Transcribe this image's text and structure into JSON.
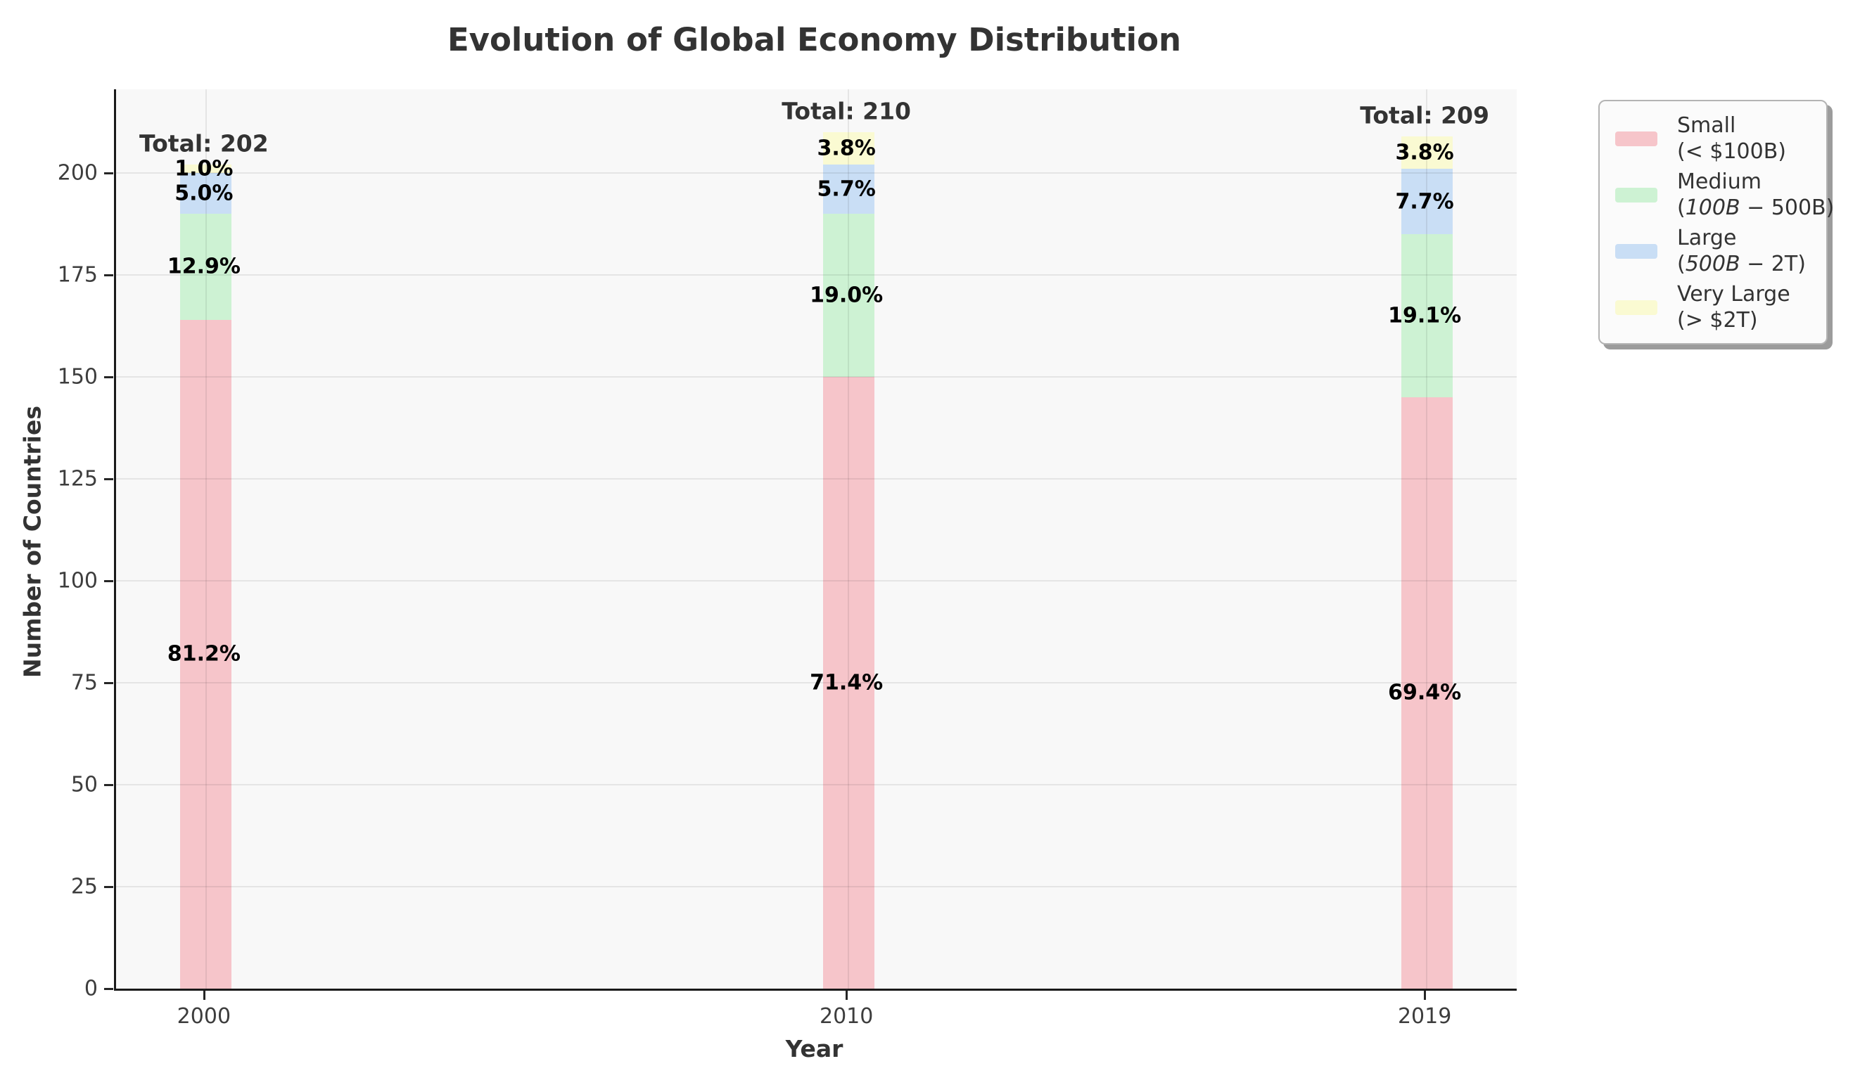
{
  "title": "Evolution of Global Economy Distribution",
  "axes": {
    "xlabel": "Year",
    "ylabel": "Number of Countries",
    "yticks": [
      0,
      25,
      50,
      75,
      100,
      125,
      150,
      175,
      200
    ],
    "xtick_labels": [
      "2000",
      "2010",
      "2019"
    ]
  },
  "legend": {
    "items": [
      {
        "label": "Small",
        "range_pre": "(< $100B)",
        "range_italic": "",
        "range_post": ""
      },
      {
        "label": "Medium",
        "range_pre": "(",
        "range_italic": "100B − ",
        "range_post": "500B)"
      },
      {
        "label": "Large",
        "range_pre": "(",
        "range_italic": "500B − ",
        "range_post": "2T)"
      },
      {
        "label": "Very Large",
        "range_pre": "(> $2T)",
        "range_italic": "",
        "range_post": ""
      }
    ]
  },
  "chart_data": {
    "type": "bar",
    "stacked": true,
    "title": "Evolution of Global Economy Distribution",
    "xlabel": "Year",
    "ylabel": "Number of Countries",
    "x": [
      2000,
      2010,
      2019
    ],
    "categories": [
      "2000",
      "2010",
      "2019"
    ],
    "series": [
      {
        "name": "Small (< $100B)",
        "color": "#f6c5ca",
        "values": [
          164,
          150,
          145
        ],
        "percent_labels": [
          "81.2%",
          "71.4%",
          "69.4%"
        ]
      },
      {
        "name": "Medium ($100B - $500B)",
        "color": "#cdf2d3",
        "values": [
          26,
          40,
          40
        ],
        "percent_labels": [
          "12.9%",
          "19.0%",
          "19.1%"
        ]
      },
      {
        "name": "Large ($500B - $2T)",
        "color": "#c9def5",
        "values": [
          10,
          12,
          16
        ],
        "percent_labels": [
          "5.0%",
          "5.7%",
          "7.7%"
        ]
      },
      {
        "name": "Very Large (> $2T)",
        "color": "#fafad2",
        "values": [
          2,
          8,
          8
        ],
        "percent_labels": [
          "1.0%",
          "3.8%",
          "3.8%"
        ]
      }
    ],
    "totals": [
      202,
      210,
      209
    ],
    "total_label_prefix": "Total: ",
    "ylim": [
      0,
      220.5
    ],
    "xlim": [
      1998.6,
      2020.4
    ],
    "bar_width_years": 0.8,
    "grid": true,
    "legend_position": "upper right, outside axes"
  },
  "colors": {
    "figure_bg": "#ffffff",
    "plot_bg": "#f8f8f8",
    "grid": "#e3e3e3",
    "spine": "#1a1a1a",
    "title_text": "#333333",
    "tick_text": "#3d3d3d",
    "percent_text": "#000000",
    "total_text": "#333333"
  }
}
